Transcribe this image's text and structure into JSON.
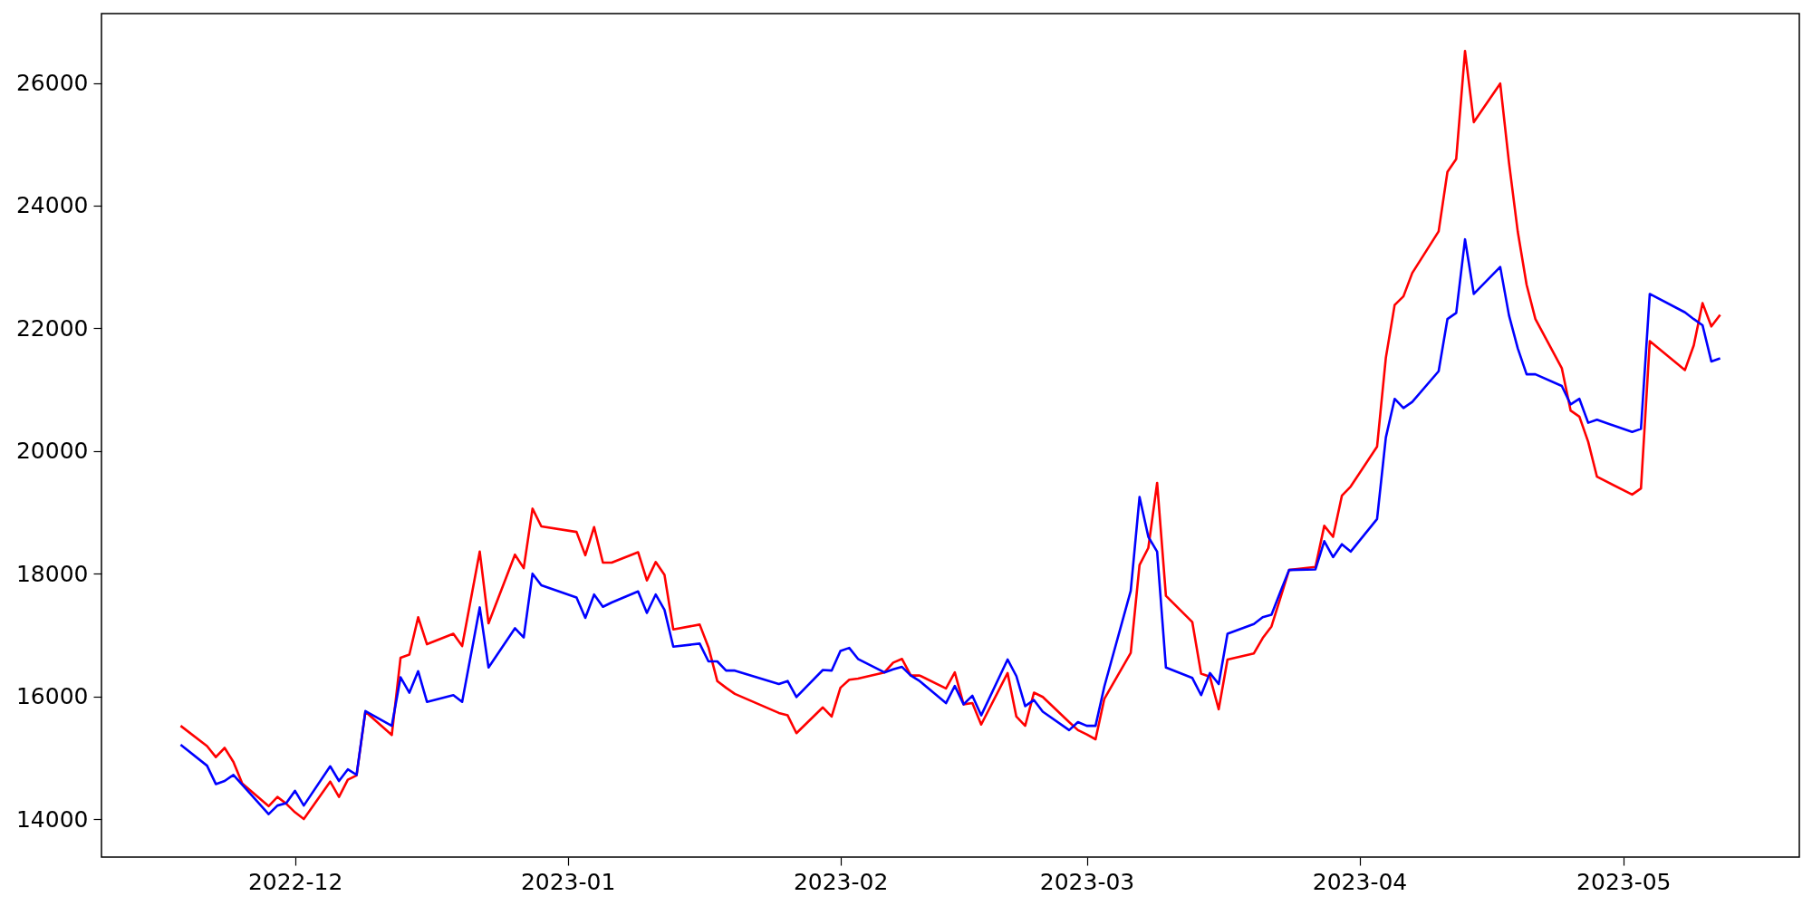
{
  "chart_data": {
    "type": "line",
    "x": [
      "2022-11-18",
      "2022-11-21",
      "2022-11-22",
      "2022-11-23",
      "2022-11-24",
      "2022-11-25",
      "2022-11-28",
      "2022-11-29",
      "2022-11-30",
      "2022-12-01",
      "2022-12-02",
      "2022-12-05",
      "2022-12-06",
      "2022-12-07",
      "2022-12-08",
      "2022-12-09",
      "2022-12-12",
      "2022-12-13",
      "2022-12-14",
      "2022-12-15",
      "2022-12-16",
      "2022-12-19",
      "2022-12-20",
      "2022-12-22",
      "2022-12-23",
      "2022-12-26",
      "2022-12-27",
      "2022-12-28",
      "2022-12-29",
      "2023-01-02",
      "2023-01-03",
      "2023-01-04",
      "2023-01-05",
      "2023-01-06",
      "2023-01-09",
      "2023-01-10",
      "2023-01-11",
      "2023-01-12",
      "2023-01-13",
      "2023-01-16",
      "2023-01-17",
      "2023-01-18",
      "2023-01-19",
      "2023-01-20",
      "2023-01-25",
      "2023-01-26",
      "2023-01-27",
      "2023-01-30",
      "2023-01-31",
      "2023-02-01",
      "2023-02-02",
      "2023-02-03",
      "2023-02-06",
      "2023-02-07",
      "2023-02-08",
      "2023-02-09",
      "2023-02-10",
      "2023-02-13",
      "2023-02-14",
      "2023-02-15",
      "2023-02-16",
      "2023-02-17",
      "2023-02-20",
      "2023-02-21",
      "2023-02-22",
      "2023-02-23",
      "2023-02-24",
      "2023-02-27",
      "2023-02-28",
      "2023-03-01",
      "2023-03-02",
      "2023-03-03",
      "2023-03-06",
      "2023-03-07",
      "2023-03-08",
      "2023-03-09",
      "2023-03-10",
      "2023-03-13",
      "2023-03-14",
      "2023-03-15",
      "2023-03-16",
      "2023-03-17",
      "2023-03-20",
      "2023-03-21",
      "2023-03-22",
      "2023-03-23",
      "2023-03-24",
      "2023-03-27",
      "2023-03-28",
      "2023-03-29",
      "2023-03-30",
      "2023-03-31",
      "2023-04-03",
      "2023-04-04",
      "2023-04-05",
      "2023-04-06",
      "2023-04-07",
      "2023-04-10",
      "2023-04-11",
      "2023-04-12",
      "2023-04-13",
      "2023-04-14",
      "2023-04-17",
      "2023-04-18",
      "2023-04-19",
      "2023-04-20",
      "2023-04-21",
      "2023-04-24",
      "2023-04-25",
      "2023-04-26",
      "2023-04-27",
      "2023-04-28",
      "2023-05-02",
      "2023-05-03",
      "2023-05-04",
      "2023-05-08",
      "2023-05-09",
      "2023-05-10",
      "2023-05-11",
      "2023-05-12"
    ],
    "series": [
      {
        "color": "#ff0000",
        "values": [
          15520,
          15190,
          15010,
          15160,
          14930,
          14580,
          14210,
          14360,
          14250,
          14110,
          14000,
          14610,
          14360,
          14640,
          14710,
          15750,
          15370,
          16630,
          16680,
          17290,
          16850,
          17020,
          16820,
          18360,
          17190,
          18310,
          18090,
          19060,
          18770,
          18680,
          18300,
          18760,
          18180,
          18180,
          18350,
          17890,
          18190,
          17980,
          17090,
          17170,
          16800,
          16250,
          16140,
          16040,
          15730,
          15690,
          15400,
          15820,
          15670,
          16140,
          16270,
          16290,
          16390,
          16550,
          16610,
          16340,
          16340,
          16130,
          16390,
          15870,
          15890,
          15540,
          16380,
          15670,
          15520,
          16060,
          15990,
          15580,
          15450,
          15380,
          15300,
          15960,
          16710,
          18140,
          18420,
          19480,
          17640,
          17210,
          16370,
          16320,
          15790,
          16600,
          16700,
          16950,
          17140,
          17600,
          18060,
          18110,
          18780,
          18600,
          19270,
          19420,
          20070,
          21520,
          22380,
          22520,
          22900,
          23580,
          24550,
          24760,
          26520,
          25360,
          25990,
          24700,
          23570,
          22710,
          22150,
          21350,
          20660,
          20560,
          20150,
          19580,
          19290,
          19390,
          21790,
          21320,
          21720,
          22410,
          22030,
          22220
        ]
      },
      {
        "color": "#0000ff",
        "values": [
          15210,
          14870,
          14570,
          14620,
          14720,
          14560,
          14080,
          14220,
          14260,
          14460,
          14220,
          14860,
          14620,
          14810,
          14720,
          15760,
          15520,
          16310,
          16060,
          16410,
          15910,
          16020,
          15910,
          17450,
          16470,
          17110,
          16960,
          18000,
          17810,
          17610,
          17280,
          17660,
          17460,
          17530,
          17710,
          17360,
          17660,
          17410,
          16810,
          16860,
          16570,
          16570,
          16420,
          16420,
          16200,
          16250,
          15990,
          16430,
          16420,
          16740,
          16790,
          16610,
          16390,
          16440,
          16480,
          16340,
          16250,
          15890,
          16170,
          15870,
          16010,
          15690,
          16600,
          16330,
          15840,
          15940,
          15750,
          15450,
          15580,
          15520,
          15520,
          16160,
          17720,
          19250,
          18600,
          18360,
          16470,
          16300,
          16020,
          16380,
          16200,
          17020,
          17180,
          17290,
          17330,
          17700,
          18060,
          18070,
          18530,
          18270,
          18480,
          18360,
          18890,
          20220,
          20850,
          20700,
          20800,
          21300,
          22150,
          22250,
          23450,
          22560,
          23000,
          22210,
          21670,
          21250,
          21250,
          21060,
          20760,
          20850,
          20460,
          20510,
          20310,
          20360,
          22560,
          22260,
          22150,
          22050,
          21460,
          21510
        ]
      }
    ],
    "xlim": [
      "2022-11-09",
      "2023-05-21"
    ],
    "xticks": [
      {
        "value": "2022-12-01",
        "label": "2022-12"
      },
      {
        "value": "2023-01-01",
        "label": "2023-01"
      },
      {
        "value": "2023-02-01",
        "label": "2023-02"
      },
      {
        "value": "2023-03-01",
        "label": "2023-03"
      },
      {
        "value": "2023-04-01",
        "label": "2023-04"
      },
      {
        "value": "2023-05-01",
        "label": "2023-05"
      }
    ],
    "ylim": [
      13380,
      27130
    ],
    "yticks": [
      14000,
      16000,
      18000,
      20000,
      22000,
      24000,
      26000
    ],
    "line_style": "solid"
  }
}
